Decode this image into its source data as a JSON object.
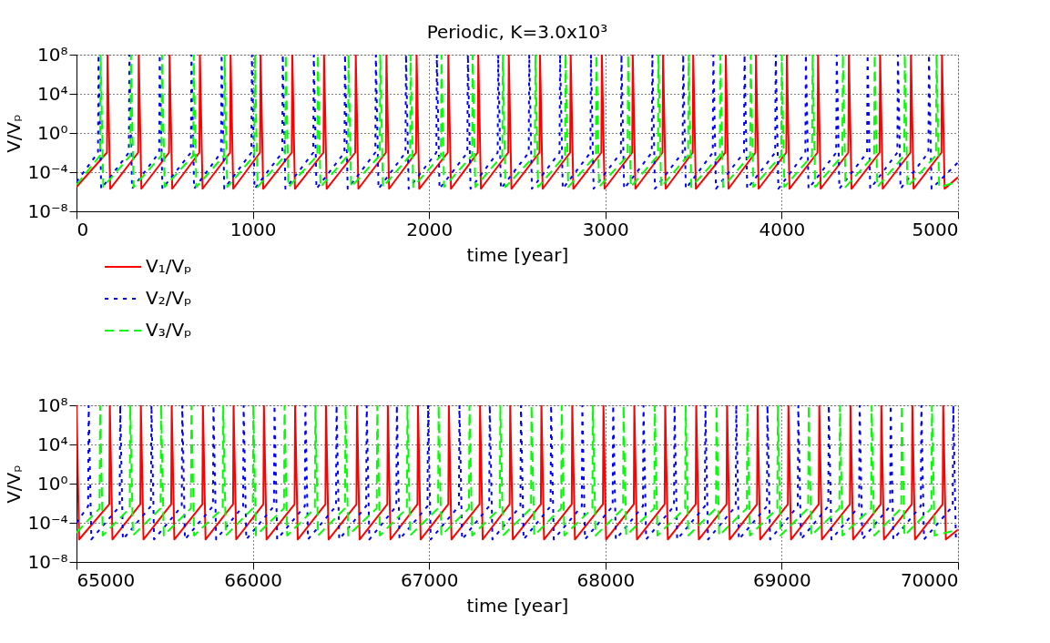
{
  "chart_data": [
    {
      "type": "line",
      "title": "Periodic, K=3.0x10³",
      "xlabel": "time [year]",
      "ylabel": "V/Vₚ",
      "log": "y",
      "grid": true,
      "legend": "bottom left",
      "xlim": [
        0,
        5000
      ],
      "xticks": [
        0,
        1000,
        2000,
        3000,
        4000,
        5000
      ],
      "ylim": [
        1e-08,
        100000000.0
      ],
      "yticks": [
        {
          "value": 1e-08,
          "label": "10⁻⁸"
        },
        {
          "value": 0.0001,
          "label": "10⁻⁴"
        },
        {
          "value": 1,
          "label": "10⁰"
        },
        {
          "value": 10000.0,
          "label": "10⁴"
        },
        {
          "value": 100000000.0,
          "label": "10⁸"
        }
      ],
      "series": [
        {
          "name": "V₁/Vₚ",
          "color": "#ff0000",
          "line_style": "solid",
          "x": [
            0,
            173,
            176,
            191,
            350,
            353,
            368,
            525,
            528,
            543,
            697,
            700,
            715,
            871,
            874,
            889,
            1041,
            1044,
            1059,
            1221,
            1224,
            1239,
            1401,
            1404,
            1419,
            1581,
            1584,
            1599,
            1755,
            1758,
            1773,
            1926,
            1929,
            1944,
            2106,
            2109,
            2124,
            2276,
            2279,
            2294,
            2449,
            2452,
            2467,
            2626,
            2629,
            2644,
            2800,
            2803,
            2818,
            2977,
            2980,
            2995,
            3152,
            3155,
            3170,
            3324,
            3327,
            3342,
            3495,
            3498,
            3513,
            3680,
            3683,
            3698,
            3851,
            3854,
            3869,
            4026,
            4029,
            4044,
            4203,
            4206,
            4221,
            4378,
            4381,
            4396,
            4555,
            4558,
            4573,
            4730,
            4733,
            4748,
            4906,
            4909,
            4924,
            5000
          ],
          "values": [
            3e-06,
            0.01,
            100000000.0,
            2e-06,
            0.01,
            100000000.0,
            2e-06,
            0.01,
            100000000.0,
            2e-06,
            0.01,
            100000000.0,
            2e-06,
            0.01,
            100000000.0,
            2e-06,
            0.01,
            100000000.0,
            2e-06,
            0.01,
            100000000.0,
            2e-06,
            0.01,
            100000000.0,
            2e-06,
            0.01,
            100000000.0,
            2e-06,
            0.01,
            100000000.0,
            2e-06,
            0.01,
            100000000.0,
            2e-06,
            0.01,
            100000000.0,
            2e-06,
            0.01,
            100000000.0,
            2e-06,
            0.01,
            100000000.0,
            2e-06,
            0.01,
            100000000.0,
            2e-06,
            0.01,
            100000000.0,
            2e-06,
            0.01,
            100000000.0,
            2e-06,
            0.01,
            100000000.0,
            2e-06,
            0.01,
            100000000.0,
            2e-06,
            0.01,
            100000000.0,
            2e-06,
            0.01,
            100000000.0,
            2e-06,
            0.01,
            100000000.0,
            2e-06,
            0.01,
            100000000.0,
            2e-06,
            0.01,
            100000000.0,
            2e-06,
            0.01,
            100000000.0,
            2e-06,
            0.01,
            100000000.0,
            2e-06,
            0.01,
            100000000.0,
            2e-06,
            0.01,
            100000000.0,
            2e-06,
            3e-05
          ]
        },
        {
          "name": "V₂/Vₚ",
          "color": "#0000ff",
          "line_style": "dotted",
          "x": [
            0,
            122,
            125,
            140,
            297,
            300,
            315,
            469,
            472,
            487,
            649,
            652,
            667,
            820,
            823,
            838,
            992,
            995,
            1010,
            1167,
            1170,
            1185,
            1343,
            1346,
            1361,
            1520,
            1523,
            1538,
            1695,
            1698,
            1713,
            1866,
            1869,
            1884,
            2041,
            2044,
            2059,
            2217,
            2220,
            2235,
            2389,
            2392,
            2407,
            2565,
            2568,
            2583,
            2740,
            2743,
            2758,
            2915,
            2918,
            2933,
            3088,
            3091,
            3106,
            3263,
            3266,
            3281,
            3438,
            3441,
            3456,
            3609,
            3612,
            3627,
            3786,
            3789,
            3804,
            3963,
            3966,
            3981,
            4134,
            4137,
            4152,
            4309,
            4312,
            4327,
            4484,
            4487,
            4502,
            4656,
            4659,
            4674,
            4832,
            4835,
            4850,
            5000
          ],
          "values": [
            1e-05,
            0.01,
            100000000.0,
            2e-06,
            0.01,
            100000000.0,
            2e-06,
            0.01,
            100000000.0,
            2e-06,
            0.01,
            100000000.0,
            2e-06,
            0.01,
            100000000.0,
            2e-06,
            0.01,
            100000000.0,
            2e-06,
            0.01,
            100000000.0,
            2e-06,
            0.01,
            100000000.0,
            2e-06,
            0.01,
            100000000.0,
            2e-06,
            0.01,
            100000000.0,
            2e-06,
            0.01,
            100000000.0,
            2e-06,
            0.01,
            100000000.0,
            2e-06,
            0.01,
            100000000.0,
            2e-06,
            0.01,
            100000000.0,
            2e-06,
            0.01,
            100000000.0,
            2e-06,
            0.01,
            100000000.0,
            2e-06,
            0.01,
            100000000.0,
            2e-06,
            0.01,
            100000000.0,
            2e-06,
            0.01,
            100000000.0,
            2e-06,
            0.01,
            100000000.0,
            2e-06,
            0.01,
            100000000.0,
            2e-06,
            0.01,
            100000000.0,
            2e-06,
            0.01,
            100000000.0,
            2e-06,
            0.01,
            100000000.0,
            2e-06,
            0.01,
            100000000.0,
            2e-06,
            0.01,
            100000000.0,
            2e-06,
            0.01,
            100000000.0,
            2e-06,
            0.01,
            100000000.0,
            2e-06,
            0.001
          ]
        },
        {
          "name": "V₃/Vₚ",
          "color": "#00ff00",
          "line_style": "dashed",
          "x": [
            0,
            134,
            137,
            152,
            306,
            309,
            324,
            482,
            485,
            500,
            662,
            665,
            680,
            837,
            840,
            855,
            1009,
            1012,
            1027,
            1184,
            1187,
            1202,
            1366,
            1369,
            1384,
            1540,
            1543,
            1558,
            1720,
            1723,
            1738,
            1892,
            1895,
            1910,
            2067,
            2070,
            2085,
            2244,
            2247,
            2262,
            2415,
            2418,
            2433,
            2600,
            2603,
            2618,
            2771,
            2774,
            2789,
            2946,
            2949,
            2964,
            3126,
            3129,
            3144,
            3298,
            3301,
            3316,
            3469,
            3472,
            3487,
            3649,
            3652,
            3667,
            3821,
            3824,
            3839,
            3997,
            4000,
            4015,
            4172,
            4175,
            4190,
            4344,
            4347,
            4362,
            4524,
            4527,
            4542,
            4695,
            4698,
            4713,
            4875,
            4878,
            4893,
            5000
          ],
          "values": [
            5e-06,
            0.005,
            100000000.0,
            3e-06,
            0.005,
            100000000.0,
            3e-06,
            0.005,
            100000000.0,
            3e-06,
            0.005,
            100000000.0,
            3e-06,
            0.005,
            100000000.0,
            3e-06,
            0.005,
            100000000.0,
            3e-06,
            0.005,
            100000000.0,
            3e-06,
            0.005,
            100000000.0,
            3e-06,
            0.005,
            100000000.0,
            3e-06,
            0.005,
            100000000.0,
            3e-06,
            0.005,
            100000000.0,
            3e-06,
            0.005,
            100000000.0,
            3e-06,
            0.005,
            100000000.0,
            3e-06,
            0.005,
            100000000.0,
            3e-06,
            0.005,
            100000000.0,
            3e-06,
            0.005,
            100000000.0,
            3e-06,
            0.005,
            100000000.0,
            3e-06,
            0.005,
            100000000.0,
            3e-06,
            0.005,
            100000000.0,
            3e-06,
            0.005,
            100000000.0,
            3e-06,
            0.005,
            100000000.0,
            3e-06,
            0.005,
            100000000.0,
            3e-06,
            0.005,
            100000000.0,
            3e-06,
            0.005,
            100000000.0,
            3e-06,
            0.005,
            100000000.0,
            3e-06,
            0.005,
            100000000.0,
            3e-06,
            0.005,
            100000000.0,
            3e-06,
            0.005,
            100000000.0,
            3e-06,
            1e-05
          ]
        }
      ]
    },
    {
      "type": "line",
      "xlabel": "time [year]",
      "ylabel": "V/Vₚ",
      "log": "y",
      "grid": true,
      "xlim": [
        65000,
        70000
      ],
      "xticks": [
        65000,
        66000,
        67000,
        68000,
        69000,
        70000
      ],
      "ylim": [
        1e-08,
        100000000.0
      ],
      "yticks": [
        {
          "value": 1e-08,
          "label": "10⁻⁸"
        },
        {
          "value": 0.0001,
          "label": "10⁻⁴"
        },
        {
          "value": 1,
          "label": "10⁰"
        },
        {
          "value": 10000.0,
          "label": "10⁴"
        },
        {
          "value": 100000000.0,
          "label": "10⁸"
        }
      ],
      "series": [
        {
          "color": "#ff0000",
          "line_style": "solid",
          "x": [
            65000,
            65015,
            65186,
            65189,
            65204,
            65362,
            65365,
            65380,
            65537,
            65540,
            65555,
            65714,
            65717,
            65732,
            65888,
            65891,
            65906,
            66060,
            66063,
            66078,
            66237,
            66240,
            66255,
            66412,
            66415,
            66430,
            66588,
            66591,
            66606,
            66763,
            66766,
            66781,
            66934,
            66937,
            66952,
            67109,
            67112,
            67127,
            67286,
            67289,
            67304,
            67457,
            67460,
            67475,
            67634,
            67637,
            67652,
            67809,
            67812,
            67827,
            67986,
            67989,
            68004,
            68161,
            68164,
            68179,
            68336,
            68339,
            68354,
            68512,
            68515,
            68530,
            68687,
            68690,
            68705,
            68860,
            68863,
            68878,
            69035,
            69038,
            69053,
            69210,
            69213,
            69228,
            69387,
            69390,
            69405,
            69562,
            69565,
            69580,
            69738,
            69741,
            69756,
            69913,
            69916,
            69931,
            70000
          ],
          "values": [
            100000000.0,
            2e-06,
            0.008,
            100000000.0,
            2e-06,
            0.008,
            100000000.0,
            2e-06,
            0.008,
            100000000.0,
            2e-06,
            0.008,
            100000000.0,
            2e-06,
            0.008,
            100000000.0,
            2e-06,
            0.008,
            100000000.0,
            2e-06,
            0.008,
            100000000.0,
            2e-06,
            0.008,
            100000000.0,
            2e-06,
            0.008,
            100000000.0,
            2e-06,
            0.008,
            100000000.0,
            2e-06,
            0.008,
            100000000.0,
            2e-06,
            0.008,
            100000000.0,
            2e-06,
            0.008,
            100000000.0,
            2e-06,
            0.008,
            100000000.0,
            2e-06,
            0.008,
            100000000.0,
            2e-06,
            0.008,
            100000000.0,
            2e-06,
            0.008,
            100000000.0,
            2e-06,
            0.008,
            100000000.0,
            2e-06,
            0.008,
            100000000.0,
            2e-06,
            0.008,
            100000000.0,
            2e-06,
            0.008,
            100000000.0,
            2e-06,
            0.008,
            100000000.0,
            2e-06,
            0.008,
            100000000.0,
            2e-06,
            0.008,
            100000000.0,
            2e-06,
            0.008,
            100000000.0,
            2e-06,
            0.008,
            100000000.0,
            2e-06,
            0.008,
            100000000.0,
            2e-06,
            0.008,
            100000000.0,
            2e-06,
            2e-05
          ]
        },
        {
          "color": "#0000ff",
          "line_style": "dotted",
          "x": [
            65000,
            65066,
            65069,
            65084,
            65245,
            65248,
            65263,
            65422,
            65425,
            65440,
            65597,
            65600,
            65615,
            65774,
            65777,
            65792,
            65945,
            65948,
            65963,
            66120,
            66123,
            66138,
            66295,
            66298,
            66313,
            66472,
            66475,
            66490,
            66643,
            66646,
            66661,
            66814,
            66817,
            66832,
            66991,
            66994,
            67009,
            67169,
            67172,
            67187,
            67341,
            67344,
            67359,
            67518,
            67521,
            67536,
            67689,
            67692,
            67707,
            67866,
            67869,
            67884,
            68041,
            68044,
            68059,
            68213,
            68216,
            68231,
            68389,
            68392,
            68407,
            68564,
            68567,
            68582,
            68739,
            68742,
            68757,
            68916,
            68919,
            68934,
            69091,
            69094,
            69109,
            69264,
            69267,
            69282,
            69439,
            69442,
            69457,
            69615,
            69618,
            69633,
            69789,
            69792,
            69807,
            69970,
            69973,
            69988,
            70000
          ],
          "values": [
            0.0001,
            0.005,
            100000000.0,
            2e-06,
            0.005,
            100000000.0,
            2e-06,
            0.005,
            100000000.0,
            2e-06,
            0.005,
            100000000.0,
            2e-06,
            0.005,
            100000000.0,
            2e-06,
            0.005,
            100000000.0,
            2e-06,
            0.005,
            100000000.0,
            2e-06,
            0.005,
            100000000.0,
            2e-06,
            0.005,
            100000000.0,
            2e-06,
            0.005,
            100000000.0,
            2e-06,
            0.005,
            100000000.0,
            2e-06,
            0.005,
            100000000.0,
            2e-06,
            0.005,
            100000000.0,
            2e-06,
            0.005,
            100000000.0,
            2e-06,
            0.005,
            100000000.0,
            2e-06,
            0.005,
            100000000.0,
            2e-06,
            0.005,
            100000000.0,
            2e-06,
            0.005,
            100000000.0,
            2e-06,
            0.005,
            100000000.0,
            2e-06,
            0.005,
            100000000.0,
            2e-06,
            0.005,
            100000000.0,
            2e-06,
            0.005,
            100000000.0,
            2e-06,
            0.005,
            100000000.0,
            2e-06,
            0.005,
            100000000.0,
            2e-06,
            0.005,
            100000000.0,
            2e-06,
            0.005,
            100000000.0,
            2e-06,
            0.005,
            100000000.0,
            2e-06,
            0.005,
            100000000.0,
            2e-06,
            0.005,
            100000000.0,
            2e-06,
            3e-06
          ]
        },
        {
          "color": "#00ff00",
          "line_style": "dashed",
          "x": [
            65000,
            65131,
            65134,
            65149,
            65302,
            65305,
            65320,
            65477,
            65480,
            65495,
            65649,
            65652,
            65667,
            65829,
            65832,
            65847,
            66000,
            66003,
            66018,
            66177,
            66180,
            66195,
            66352,
            66355,
            66370,
            66523,
            66526,
            66541,
            66703,
            66706,
            66721,
            66874,
            66877,
            66892,
            67051,
            67054,
            67069,
            67226,
            67229,
            67244,
            67401,
            67404,
            67419,
            67578,
            67581,
            67596,
            67749,
            67752,
            67767,
            67926,
            67929,
            67944,
            68100,
            68103,
            68118,
            68277,
            68280,
            68295,
            68452,
            68455,
            68470,
            68627,
            68630,
            68645,
            68802,
            68805,
            68820,
            68975,
            68978,
            68993,
            69150,
            69153,
            69168,
            69327,
            69330,
            69345,
            69507,
            69510,
            69525,
            69678,
            69681,
            69696,
            69849,
            69852,
            69867,
            70000
          ],
          "values": [
            1e-05,
            0.003,
            100000000.0,
            5e-06,
            0.003,
            100000000.0,
            5e-06,
            0.003,
            100000000.0,
            5e-06,
            0.003,
            100000000.0,
            5e-06,
            0.003,
            100000000.0,
            5e-06,
            0.003,
            100000000.0,
            5e-06,
            0.003,
            100000000.0,
            5e-06,
            0.003,
            100000000.0,
            5e-06,
            0.003,
            100000000.0,
            5e-06,
            0.003,
            100000000.0,
            5e-06,
            0.003,
            100000000.0,
            5e-06,
            0.003,
            100000000.0,
            5e-06,
            0.003,
            100000000.0,
            5e-06,
            0.003,
            100000000.0,
            5e-06,
            0.003,
            100000000.0,
            5e-06,
            0.003,
            100000000.0,
            5e-06,
            0.003,
            100000000.0,
            5e-06,
            0.003,
            100000000.0,
            5e-06,
            0.003,
            100000000.0,
            5e-06,
            0.003,
            100000000.0,
            5e-06,
            0.003,
            100000000.0,
            5e-06,
            0.003,
            100000000.0,
            5e-06,
            0.003,
            100000000.0,
            5e-06,
            0.003,
            100000000.0,
            5e-06,
            0.003,
            100000000.0,
            5e-06,
            0.003,
            100000000.0,
            5e-06,
            0.003,
            100000000.0,
            5e-06,
            0.003,
            100000000.0,
            5e-06,
            2e-05
          ]
        }
      ]
    }
  ]
}
